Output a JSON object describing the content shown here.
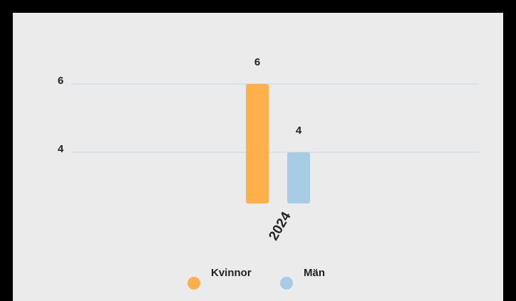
{
  "chart_data": {
    "type": "bar",
    "categories": [
      "2024"
    ],
    "series": [
      {
        "name": "Kvinnor",
        "color": "#ffb04a",
        "values": [
          6
        ]
      },
      {
        "name": "Män",
        "color": "#a6cde3",
        "values": [
          4
        ]
      }
    ],
    "ylim": [
      2.5,
      6.5
    ],
    "yticks": [
      4,
      6
    ],
    "grid": true,
    "legend": "bottom"
  }
}
